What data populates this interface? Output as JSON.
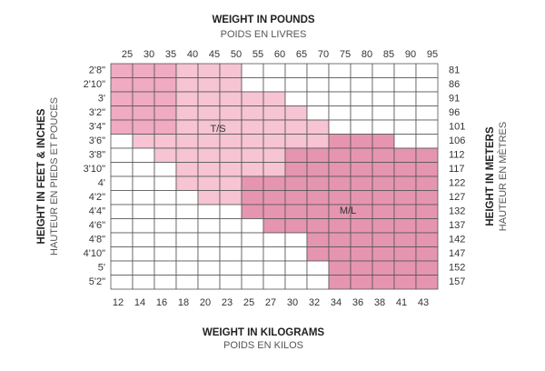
{
  "top_title": "WEIGHT IN POUNDS",
  "top_subtitle": "POIDS EN LIVRES",
  "bottom_title": "WEIGHT IN KILOGRAMS",
  "bottom_subtitle": "POIDS EN KILOS",
  "left_title": "HEIGHT IN FEET & INCHES",
  "left_subtitle": "HAUTEUR EN PIEDS ET POUCES",
  "right_title": "HEIGHT IN METERS",
  "right_subtitle": "HAUTEUR EN MÈTRES",
  "pounds": [
    25,
    30,
    35,
    40,
    45,
    50,
    55,
    60,
    65,
    70,
    75,
    80,
    85,
    90,
    95
  ],
  "kilograms": [
    12,
    14,
    16,
    18,
    20,
    23,
    25,
    27,
    30,
    32,
    34,
    36,
    38,
    41,
    43
  ],
  "feet_inches": [
    "2'8\"",
    "2'10\"",
    "3'",
    "3'2\"",
    "3'4\"",
    "3'6\"",
    "3'8\"",
    "3'10\"",
    "4'",
    "4'2\"",
    "4'4\"",
    "4'6\"",
    "4'8\"",
    "4'10\"",
    "5'",
    "5'2\""
  ],
  "meters": [
    81,
    86,
    91,
    96,
    101,
    106,
    112,
    117,
    122,
    127,
    132,
    137,
    142,
    147,
    152,
    157
  ],
  "regions": [
    "T/S",
    "M/L"
  ]
}
